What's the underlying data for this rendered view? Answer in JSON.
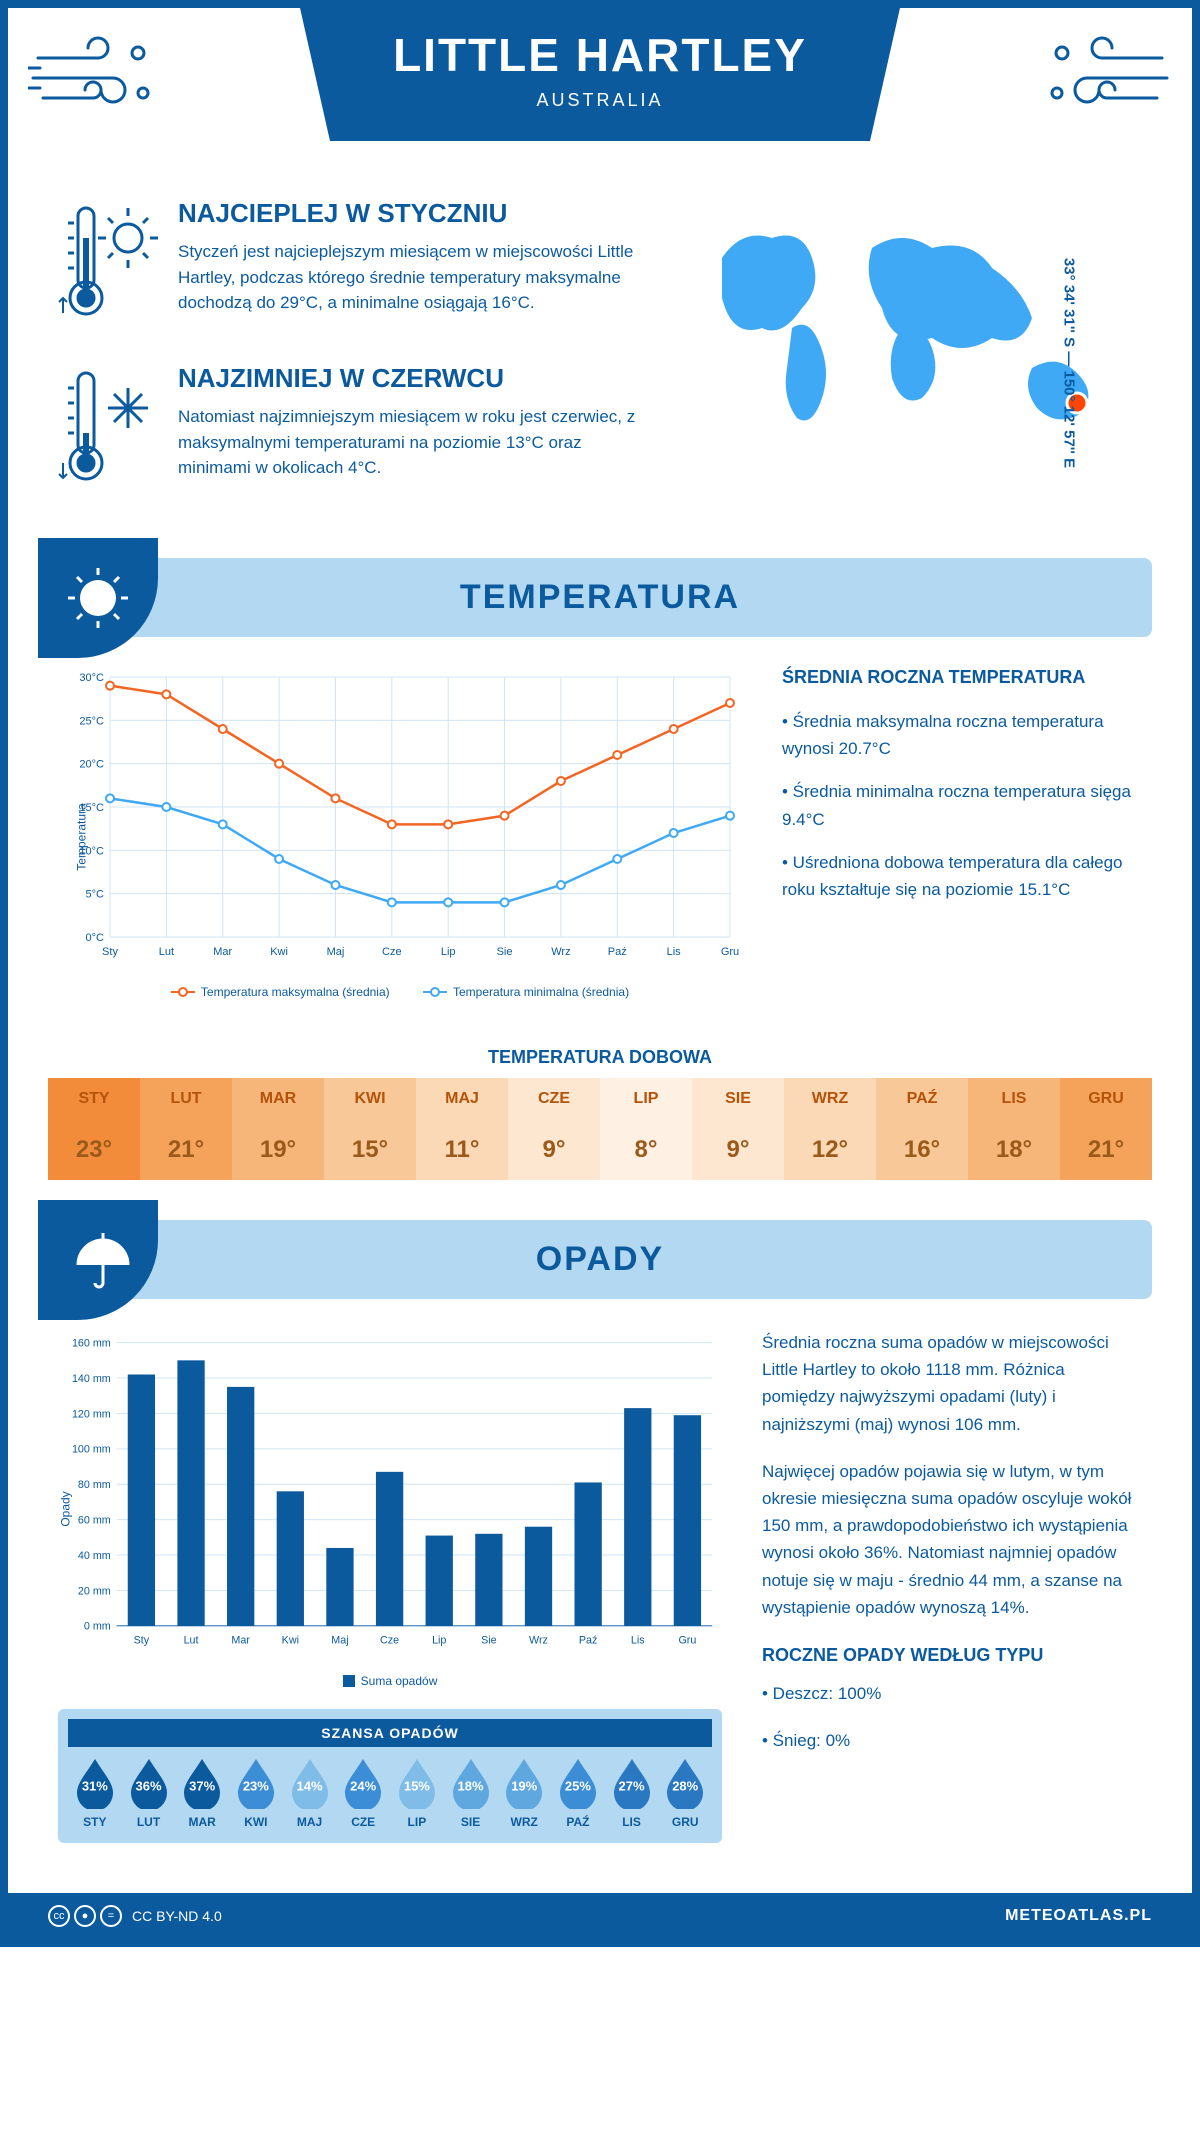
{
  "header": {
    "title": "LITTLE HARTLEY",
    "subtitle": "AUSTRALIA"
  },
  "coordinates": "33° 34' 31'' S — 150° 12' 57'' E",
  "intro": {
    "warmest": {
      "heading": "NAJCIEPLEJ W STYCZNIU",
      "text": "Styczeń jest najcieplejszym miesiącem w miejscowości Little Hartley, podczas którego średnie temperatury maksymalne dochodzą do 29°C, a minimalne osiągają 16°C."
    },
    "coldest": {
      "heading": "NAJZIMNIEJ W CZERWCU",
      "text": "Natomiast najzimniejszym miesiącem w roku jest czerwiec, z maksymalnymi temperaturami na poziomie 13°C oraz minimami w okolicach 4°C."
    }
  },
  "months": [
    "Sty",
    "Lut",
    "Mar",
    "Kwi",
    "Maj",
    "Cze",
    "Lip",
    "Sie",
    "Wrz",
    "Paź",
    "Lis",
    "Gru"
  ],
  "months_upper": [
    "STY",
    "LUT",
    "MAR",
    "KWI",
    "MAJ",
    "CZE",
    "LIP",
    "SIE",
    "WRZ",
    "PAŹ",
    "LIS",
    "GRU"
  ],
  "temperature": {
    "section_title": "TEMPERATURA",
    "chart": {
      "type": "line",
      "ylabel": "Temperatura",
      "ylim": [
        0,
        30
      ],
      "ytick_step": 5,
      "ytick_suffix": "°C",
      "grid_color": "#d0e4f5",
      "background_color": "#ffffff",
      "series": {
        "max": {
          "label": "Temperatura maksymalna (średnia)",
          "color": "#f26522",
          "values": [
            29,
            28,
            24,
            20,
            16,
            13,
            13,
            14,
            18,
            21,
            24,
            27
          ]
        },
        "min": {
          "label": "Temperatura minimalna (średnia)",
          "color": "#3fa9f5",
          "values": [
            16,
            15,
            13,
            9,
            6,
            4,
            4,
            4,
            6,
            9,
            12,
            14
          ]
        }
      }
    },
    "info": {
      "heading": "ŚREDNIA ROCZNA TEMPERATURA",
      "bullet1": "• Średnia maksymalna roczna temperatura wynosi 20.7°C",
      "bullet2": "• Średnia minimalna roczna temperatura sięga 9.4°C",
      "bullet3": "• Uśredniona dobowa temperatura dla całego roku kształtuje się na poziomie 15.1°C"
    },
    "daily": {
      "title": "TEMPERATURA DOBOWA",
      "values": [
        "23°",
        "21°",
        "19°",
        "15°",
        "11°",
        "9°",
        "8°",
        "9°",
        "12°",
        "16°",
        "18°",
        "21°"
      ],
      "head_colors": [
        "#f28c3a",
        "#f5a35a",
        "#f7b679",
        "#f9c898",
        "#fbd9b6",
        "#fde7d0",
        "#fef0e2",
        "#fde7d0",
        "#fbd9b6",
        "#f9c898",
        "#f7b679",
        "#f5a35a"
      ],
      "head_text_color": "#b45309",
      "row_bg": "#f28c3a",
      "val_colors": [
        "#f28c3a",
        "#f5a35a",
        "#f7b679",
        "#f9c898",
        "#fbd9b6",
        "#fde7d0",
        "#fef0e2",
        "#fde7d0",
        "#fbd9b6",
        "#f9c898",
        "#f7b679",
        "#f5a35a"
      ]
    }
  },
  "precipitation": {
    "section_title": "OPADY",
    "chart": {
      "type": "bar",
      "ylabel": "Opady",
      "ylim": [
        0,
        160
      ],
      "ytick_step": 20,
      "ytick_suffix": " mm",
      "bar_color": "#0b5a9e",
      "grid_color": "#d0e4f5",
      "legend_label": "Suma opadów",
      "values": [
        142,
        150,
        135,
        76,
        44,
        87,
        51,
        52,
        56,
        81,
        123,
        119
      ]
    },
    "text1": "Średnia roczna suma opadów w miejscowości Little Hartley to około 1118 mm. Różnica pomiędzy najwyższymi opadami (luty) i najniższymi (maj) wynosi 106 mm.",
    "text2": "Najwięcej opadów pojawia się w lutym, w tym okresie miesięczna suma opadów oscyluje wokół 150 mm, a prawdopodobieństwo ich wystąpienia wynosi około 36%. Natomiast najmniej opadów notuje się w maju - średnio 44 mm, a szanse na wystąpienie opadów wynoszą 14%.",
    "chance": {
      "title": "SZANSA OPADÓW",
      "values": [
        "31%",
        "36%",
        "37%",
        "23%",
        "14%",
        "24%",
        "15%",
        "18%",
        "19%",
        "25%",
        "27%",
        "28%"
      ],
      "drop_fills": [
        "#0b5a9e",
        "#0b5a9e",
        "#0b5a9e",
        "#3b8dd6",
        "#7fbde8",
        "#3b8dd6",
        "#7fbde8",
        "#5fa8df",
        "#5fa8df",
        "#3b8dd6",
        "#2a77c2",
        "#2a77c2"
      ]
    },
    "by_type": {
      "heading": "ROCZNE OPADY WEDŁUG TYPU",
      "rain": "• Deszcz: 100%",
      "snow": "• Śnieg: 0%"
    }
  },
  "footer": {
    "license": "CC BY-ND 4.0",
    "brand": "METEOATLAS.PL"
  }
}
